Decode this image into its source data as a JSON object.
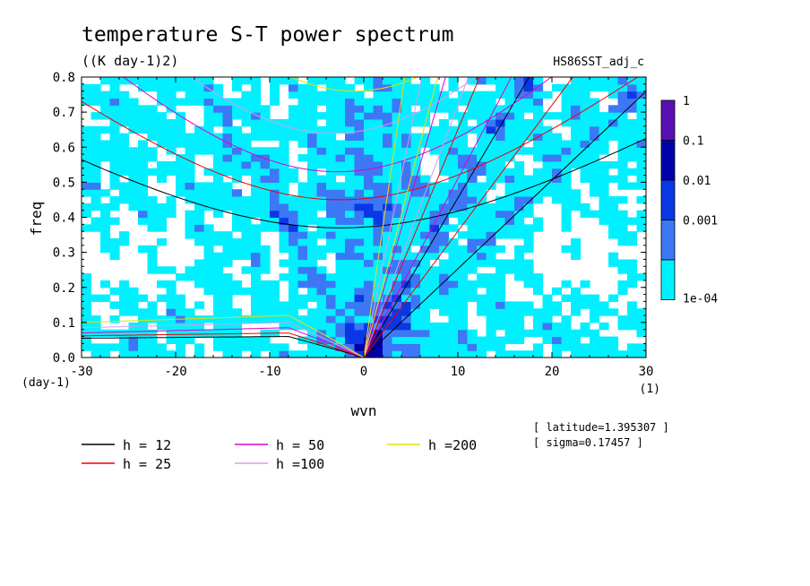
{
  "chart_data": {
    "type": "heatmap",
    "title": "temperature S-T power spectrum",
    "subtitle": "((K day-1)2)",
    "run_label": "HS86SST_adj_c",
    "xlabel": "wvn",
    "ylabel": "freq",
    "x_unit": "(1)",
    "y_unit": "(day-1)",
    "xlim": [
      -30,
      30
    ],
    "ylim": [
      0,
      0.8
    ],
    "x_ticks": [
      -30,
      -20,
      -10,
      0,
      10,
      20,
      30
    ],
    "y_ticks": [
      0.0,
      0.1,
      0.2,
      0.3,
      0.4,
      0.5,
      0.6,
      0.7,
      0.8
    ],
    "colorbar": {
      "levels": [
        "1",
        "0.1",
        "0.01",
        "0.001",
        "1e-04"
      ],
      "colors": [
        "#5a10b4",
        "#0000aa",
        "#0a37e6",
        "#3c78f5",
        "#00f0ff"
      ]
    },
    "params": [
      "[ latitude=1.395307 ]",
      "[ sigma=0.17457 ]"
    ],
    "dispersion_curves": [
      {
        "name": "h = 12",
        "color": "#000000"
      },
      {
        "name": "h = 25",
        "color": "#ee0000"
      },
      {
        "name": "h = 50",
        "color": "#dd00cc"
      },
      {
        "name": "h =100",
        "color": "#dd99ee"
      },
      {
        "name": "h =200",
        "color": "#eedd00"
      }
    ]
  }
}
